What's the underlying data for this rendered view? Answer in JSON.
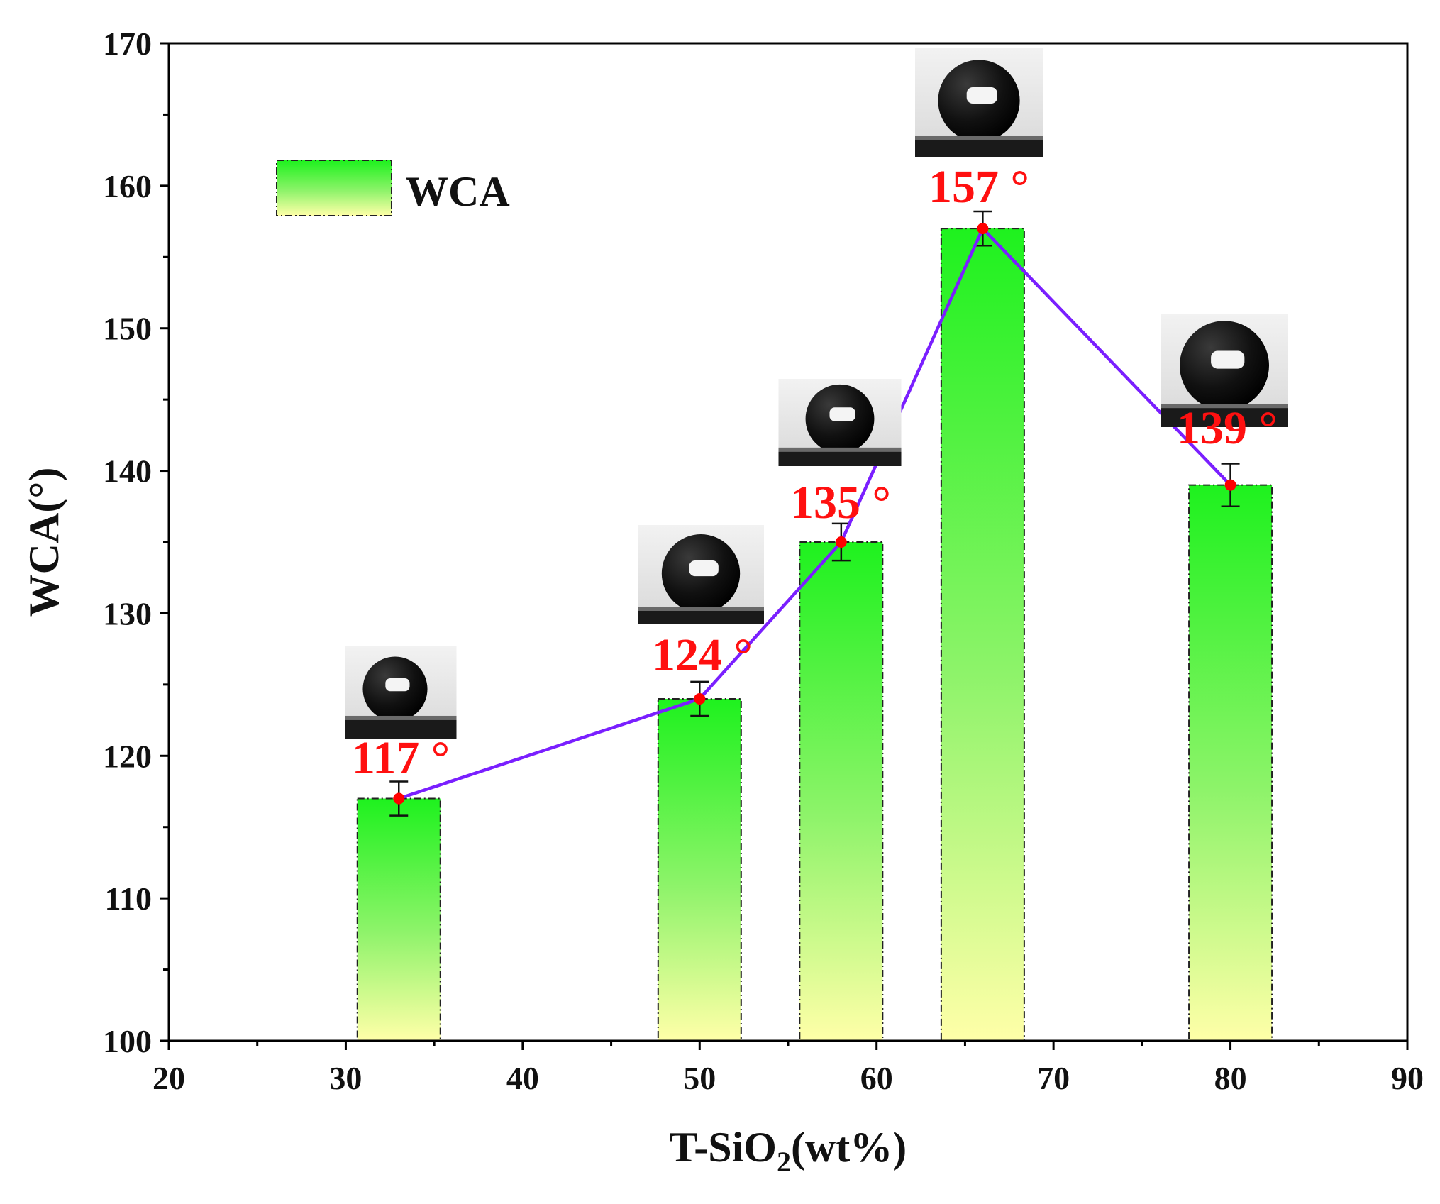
{
  "chart_data": {
    "type": "bar",
    "title": "",
    "xlabel": "T-SiO₂(wt%)",
    "xlabel_base": "T-SiO",
    "xlabel_sub": "2",
    "xlabel_tail": "(wt%)",
    "ylabel": "WCA(°)",
    "xlim": [
      20,
      90
    ],
    "ylim": [
      100,
      170
    ],
    "x_major_ticks": [
      20,
      30,
      40,
      50,
      60,
      70,
      80,
      90
    ],
    "y_major_ticks": [
      100,
      110,
      120,
      130,
      140,
      150,
      160,
      170
    ],
    "x_tick_labels": [
      "20",
      "30",
      "40",
      "50",
      "60",
      "70",
      "80",
      "90"
    ],
    "y_tick_labels": [
      "100",
      "110",
      "120",
      "130",
      "140",
      "150",
      "160",
      "170"
    ],
    "grid": false,
    "legend": {
      "label": "WCA",
      "position": "top-left"
    },
    "series": [
      {
        "name": "WCA",
        "x": [
          33,
          50,
          58,
          66,
          80
        ],
        "values": [
          117,
          124,
          135,
          157,
          139
        ],
        "errors": [
          1.2,
          1.2,
          1.3,
          1.2,
          1.5
        ],
        "labels": [
          "117 °",
          "124 °",
          "135 °",
          "157 °",
          "139 °"
        ]
      }
    ],
    "line_color": "#7a1fff",
    "point_color": "#ff0000",
    "bar_top_color": "#1ef21e",
    "bar_bottom_color": "#ffffa8",
    "annotation_color": "#ff1010"
  }
}
